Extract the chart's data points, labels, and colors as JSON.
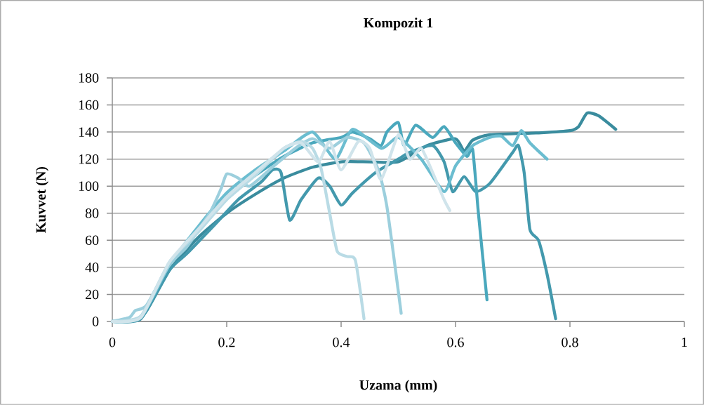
{
  "chart_data": {
    "type": "line",
    "title": "Kompozit 1",
    "xlabel": "Uzama (mm)",
    "ylabel": "Kuvvet (N)",
    "xlim": [
      0,
      1
    ],
    "xticks": [
      0,
      0.2,
      0.4,
      0.6,
      0.8,
      1
    ],
    "ylim": [
      0,
      180
    ],
    "yticks": [
      0,
      20,
      40,
      60,
      80,
      100,
      120,
      140,
      160,
      180
    ],
    "grid": "y",
    "marker": "none",
    "line_style": "solid",
    "series": [
      {
        "color": "#3a8c9e",
        "x": [
          0,
          0.04,
          0.06,
          0.1,
          0.15,
          0.2,
          0.25,
          0.3,
          0.35,
          0.4,
          0.45,
          0.5,
          0.55,
          0.6,
          0.615,
          0.63,
          0.66,
          0.75,
          0.8,
          0.815,
          0.83,
          0.85,
          0.88
        ],
        "values": [
          0,
          1,
          8,
          38,
          62,
          80,
          94,
          106,
          114,
          118,
          118,
          118,
          130,
          135,
          126,
          134,
          138,
          139.5,
          141,
          144,
          154,
          152,
          142
        ]
      },
      {
        "color": "#4399ad",
        "x": [
          0,
          0.05,
          0.1,
          0.13,
          0.18,
          0.22,
          0.26,
          0.28,
          0.295,
          0.31,
          0.33,
          0.36,
          0.38,
          0.4,
          0.42,
          0.46,
          0.5,
          0.52,
          0.56,
          0.58,
          0.595,
          0.615,
          0.635,
          0.66,
          0.7,
          0.71,
          0.72,
          0.73,
          0.745,
          0.76,
          0.775
        ],
        "values": [
          0,
          2,
          38,
          50,
          72,
          90,
          103,
          112,
          110,
          75,
          90,
          106,
          100,
          86,
          95,
          110,
          120,
          125,
          130,
          118,
          96,
          107,
          96,
          102,
          125,
          130,
          110,
          68,
          60,
          35,
          2
        ]
      },
      {
        "color": "#4aa8bd",
        "x": [
          0,
          0.05,
          0.1,
          0.15,
          0.2,
          0.25,
          0.3,
          0.35,
          0.4,
          0.42,
          0.45,
          0.47,
          0.48,
          0.5,
          0.51,
          0.53,
          0.56,
          0.58,
          0.6,
          0.62,
          0.63,
          0.64,
          0.655
        ],
        "values": [
          0,
          3,
          42,
          68,
          92,
          108,
          122,
          132,
          136,
          140,
          135,
          130,
          140,
          147,
          130,
          145,
          136,
          144,
          132,
          122,
          127,
          80,
          16
        ]
      },
      {
        "color": "#6bbdd0",
        "x": [
          0,
          0.05,
          0.1,
          0.15,
          0.2,
          0.25,
          0.3,
          0.35,
          0.39,
          0.42,
          0.47,
          0.5,
          0.54,
          0.58,
          0.6,
          0.63,
          0.66,
          0.68,
          0.7,
          0.715,
          0.73,
          0.76
        ],
        "values": [
          0,
          3,
          42,
          70,
          95,
          112,
          126,
          140,
          120,
          142,
          128,
          136,
          120,
          96,
          115,
          130,
          136,
          137,
          130,
          141,
          132,
          120
        ]
      },
      {
        "color": "#9ccfdd",
        "x": [
          0,
          0.03,
          0.04,
          0.06,
          0.1,
          0.13,
          0.17,
          0.19,
          0.2,
          0.22,
          0.24,
          0.28,
          0.32,
          0.35,
          0.38,
          0.41,
          0.44,
          0.465,
          0.48,
          0.505
        ],
        "values": [
          0,
          3,
          8,
          12,
          42,
          55,
          80,
          98,
          109,
          106,
          100,
          114,
          128,
          135,
          128,
          136,
          132,
          112,
          85,
          6
        ]
      },
      {
        "color": "#b9dbe5",
        "x": [
          0,
          0.05,
          0.1,
          0.15,
          0.2,
          0.25,
          0.3,
          0.33,
          0.35,
          0.365,
          0.38,
          0.393,
          0.41,
          0.425,
          0.44
        ],
        "values": [
          0,
          4,
          44,
          66,
          90,
          108,
          128,
          133,
          128,
          113,
          80,
          52,
          48,
          45,
          2
        ]
      },
      {
        "color": "#d0e4eb",
        "x": [
          0,
          0.05,
          0.1,
          0.15,
          0.2,
          0.25,
          0.3,
          0.33,
          0.36,
          0.38,
          0.4,
          0.43,
          0.45,
          0.47,
          0.5,
          0.52,
          0.54,
          0.56,
          0.58,
          0.59
        ],
        "values": [
          0,
          3,
          44,
          68,
          92,
          110,
          128,
          132,
          118,
          133,
          112,
          133,
          128,
          105,
          138,
          120,
          128,
          110,
          90,
          82
        ]
      }
    ]
  }
}
